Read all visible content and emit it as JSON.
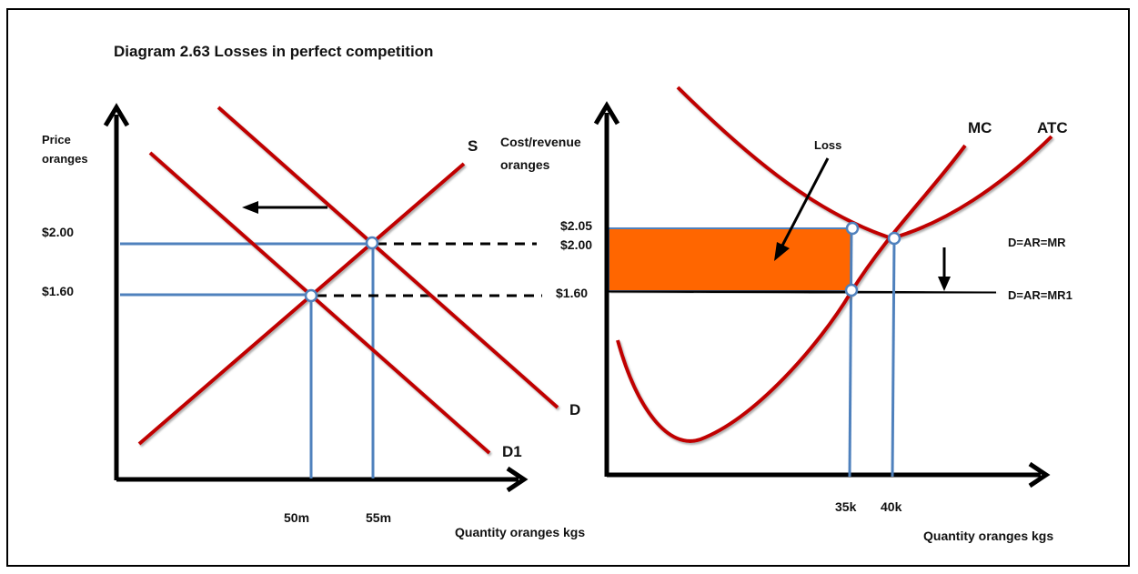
{
  "title": "Diagram 2.63 Losses in perfect competition",
  "left": {
    "y_axis_label_1": "Price",
    "y_axis_label_2": "oranges",
    "x_axis_label": "Quantity oranges kgs",
    "price_high": "$2.00",
    "price_low": "$1.60",
    "qty_low": "50m",
    "qty_high": "55m",
    "supply_label": "S",
    "demand_label": "D",
    "demand_new_label": "D1"
  },
  "right": {
    "y_axis_label_1": "Cost/revenue",
    "y_axis_label_2": "oranges",
    "x_axis_label": "Quantity oranges kgs",
    "price_atc": "$2.05",
    "price_high": "$2.00",
    "price_low": "$1.60",
    "qty_low": "35k",
    "qty_high": "40k",
    "mc_label": "MC",
    "atc_label": "ATC",
    "loss_label": "Loss",
    "demand_label": "D=AR=MR",
    "demand_new_label": "D=AR=MR1"
  },
  "colors": {
    "curve": "#c00000",
    "guide": "#4f81bd",
    "loss_area": "#ff6600",
    "axis": "#000000"
  }
}
